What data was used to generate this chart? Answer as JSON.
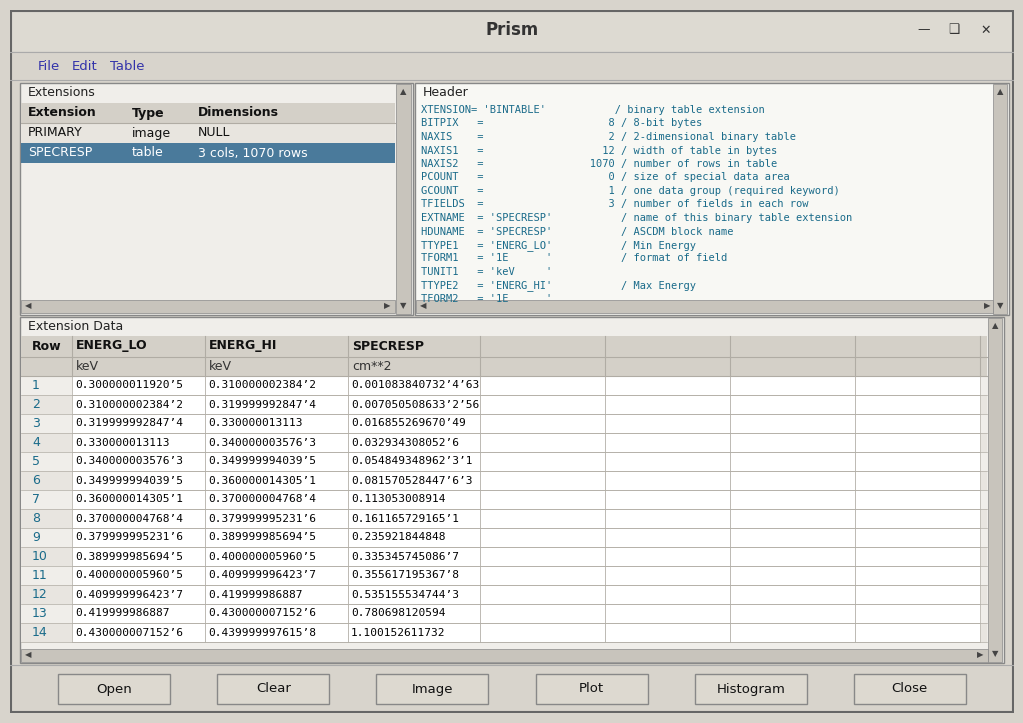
{
  "title": "Prism",
  "menu_items": [
    "File",
    "Edit",
    "Table"
  ],
  "bg_color": "#d4d0c8",
  "window_bg": "#d8d4cc",
  "extensions_label": "Extensions",
  "ext_columns": [
    "Extension",
    "Type",
    "Dimensions"
  ],
  "ext_rows": [
    [
      "PRIMARY",
      "image",
      "NULL"
    ],
    [
      "SPECRESP",
      "table",
      "3 cols, 1070 rows"
    ]
  ],
  "ext_selected_row": 1,
  "ext_selected_color": "#4a7a9b",
  "header_label": "Header",
  "header_lines": [
    "XTENSION= 'BINTABLE'           / binary table extension",
    "BITPIX   =                    8 / 8-bit bytes",
    "NAXIS    =                    2 / 2-dimensional binary table",
    "NAXIS1   =                   12 / width of table in bytes",
    "NAXIS2   =                 1070 / number of rows in table",
    "PCOUNT   =                    0 / size of special data area",
    "GCOUNT   =                    1 / one data group (required keyword)",
    "TFIELDS  =                    3 / number of fields in each row",
    "EXTNAME  = 'SPECRESP'           / name of this binary table extension",
    "HDUNAME  = 'SPECRESP'           / ASCDM block name",
    "TTYPE1   = 'ENERG_LO'           / Min Energy",
    "TFORM1   = '1E      '           / format of field",
    "TUNIT1   = 'keV     '",
    "TTYPE2   = 'ENERG_HI'           / Max Energy",
    "TFORM2   = '1E      '"
  ],
  "ext_data_label": "Extension Data",
  "data_columns": [
    "Row",
    "ENERG_LO",
    "ENERG_HI",
    "SPECRESP"
  ],
  "data_units": [
    "",
    "keV",
    "keV",
    "cm**2"
  ],
  "actual_data": [
    [
      "1",
      "0.300000011920’5",
      "0.310000002384’2",
      "0.001083840732’4’63"
    ],
    [
      "2",
      "0.310000002384’2",
      "0.319999992847’4",
      "0.007050508633’2’56"
    ],
    [
      "3",
      "0.319999992847’4",
      "0.330000013113",
      "0.016855269670’49"
    ],
    [
      "4",
      "0.330000013113",
      "0.340000003576’3",
      "0.032934308052’6"
    ],
    [
      "5",
      "0.340000003576’3",
      "0.349999994039’5",
      "0.054849348962’3’1"
    ],
    [
      "6",
      "0.349999994039’5",
      "0.360000014305’1",
      "0.081570528447’6’3"
    ],
    [
      "7",
      "0.360000014305’1",
      "0.370000004768’4",
      "0.113053008914"
    ],
    [
      "8",
      "0.370000004768’4",
      "0.379999995231’6",
      "0.161165729165’1"
    ],
    [
      "9",
      "0.379999995231’6",
      "0.389999985694’5",
      "0.235921844848"
    ],
    [
      "10",
      "0.389999985694’5",
      "0.400000005960’5",
      "0.335345745086’7"
    ],
    [
      "11",
      "0.400000005960’5",
      "0.409999996423’7",
      "0.355617195367’8"
    ],
    [
      "12",
      "0.409999996423’7",
      "0.419999986887",
      "0.535155534744’3"
    ],
    [
      "13",
      "0.419999986887",
      "0.430000007152’6",
      "0.780698120594"
    ],
    [
      "14",
      "0.430000007152’6",
      "0.439999997615’8",
      "1.100152611732"
    ]
  ],
  "button_labels": [
    "Open",
    "Clear",
    "Image",
    "Plot",
    "Histogram",
    "Close"
  ],
  "header_text_color": "#1a6b8a",
  "data_row_number_color": "#1a6b8a",
  "data_value_color": "#000000",
  "font_mono": "monospace",
  "cell_border_color": "#b0aca4",
  "panel_border_color": "#888888",
  "panel_bg_white": "#f0eeea",
  "panel_bg_header": "#e8e5df",
  "table_header_bg": "#d4d0c8",
  "title_bar_bg": "#dddad2",
  "menu_bar_bg": "#d8d4cc",
  "scrollbar_bg": "#c8c4bc"
}
